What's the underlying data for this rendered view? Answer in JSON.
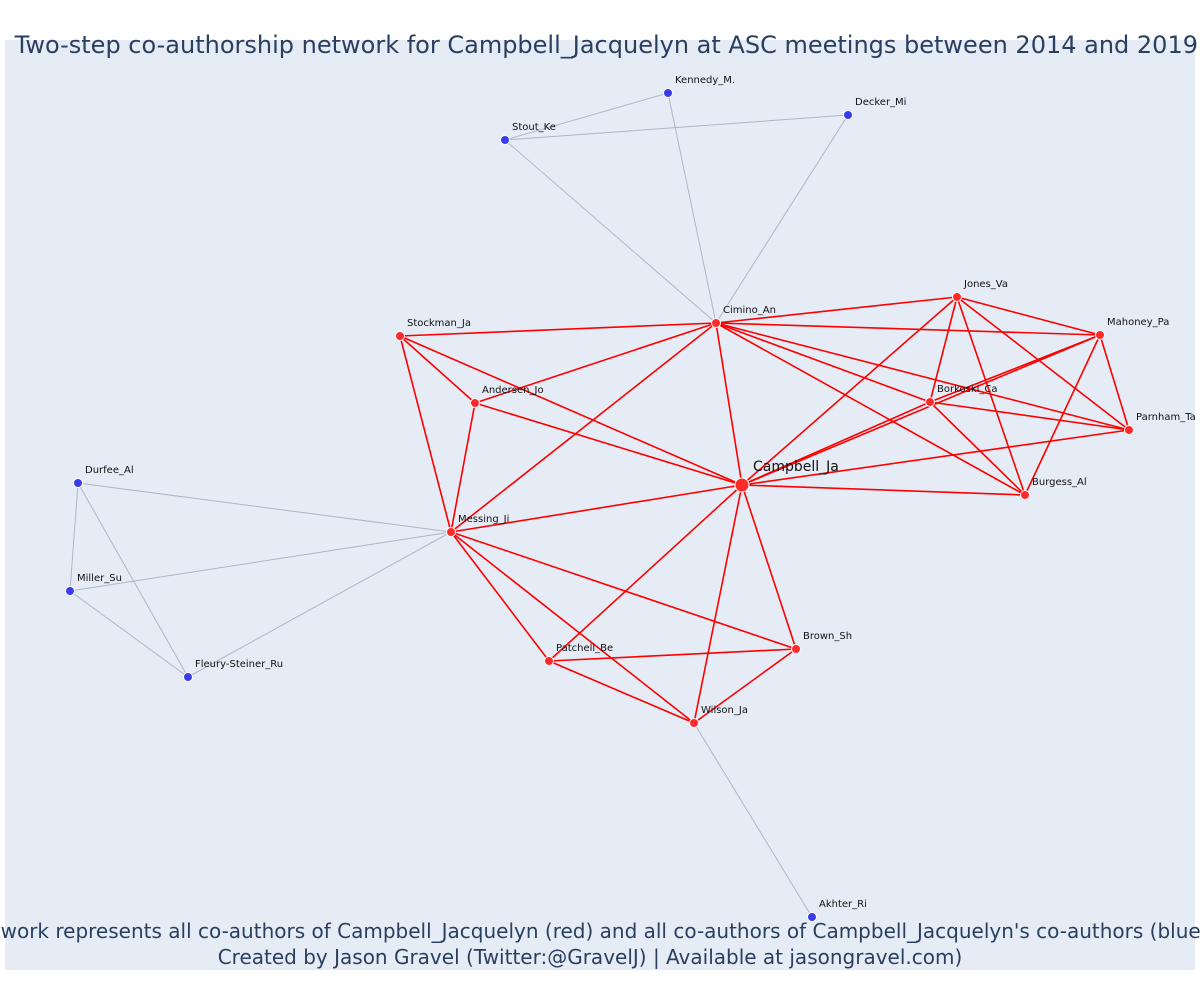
{
  "title": "Two-step co-authorship network for Campbell_Jacquelyn at ASC meetings between 2014 and 2019",
  "caption": {
    "line1": "Network represents all co-authors of Campbell_Jacquelyn (red) and all co-authors of Campbell_Jacquelyn's co-authors (blue)",
    "line2": "Created by Jason Gravel (Twitter:@GravelJ) | Available at jasongravel.com)"
  },
  "colors": {
    "plot_bg": "#e5ecf6",
    "first_step": "#ff2a2a",
    "second_step": "#3b3bee",
    "first_step_edge": "#ff0000",
    "second_step_edge": "#b0b4c8",
    "node_outline": "#ffffff",
    "text": "#2a3f5f"
  },
  "nodes": [
    {
      "id": "Campbell_Ja",
      "label": "Campbell_Ja",
      "group": "ego"
    },
    {
      "id": "Cimino_An",
      "label": "Cimino_An",
      "group": "red"
    },
    {
      "id": "Stockman_Ja",
      "label": "Stockman_Ja",
      "group": "red"
    },
    {
      "id": "Andersen_Jo",
      "label": "Andersen_Jo",
      "group": "red"
    },
    {
      "id": "Messing_Ji",
      "label": "Messing_Ji",
      "group": "red"
    },
    {
      "id": "Patchell_Be",
      "label": "Patchell_Be",
      "group": "red"
    },
    {
      "id": "Wilson_Ja",
      "label": "Wilson_Ja",
      "group": "red"
    },
    {
      "id": "Brown_Sh",
      "label": "Brown_Sh",
      "group": "red"
    },
    {
      "id": "Jones_Va",
      "label": "Jones_Va",
      "group": "red"
    },
    {
      "id": "Mahoney_Pa",
      "label": "Mahoney_Pa",
      "group": "red"
    },
    {
      "id": "Borkoski_Ca",
      "label": "Borkoski_Ca",
      "group": "red"
    },
    {
      "id": "Parnham_Ta",
      "label": "Parnham_Ta",
      "group": "red"
    },
    {
      "id": "Burgess_Al",
      "label": "Burgess_Al",
      "group": "red"
    },
    {
      "id": "Kennedy_M.",
      "label": "Kennedy_M.",
      "group": "blue"
    },
    {
      "id": "Decker_Mi",
      "label": "Decker_Mi",
      "group": "blue"
    },
    {
      "id": "Stout_Ke",
      "label": "Stout_Ke",
      "group": "blue"
    },
    {
      "id": "Durfee_Al",
      "label": "Durfee_Al",
      "group": "blue"
    },
    {
      "id": "Miller_Su",
      "label": "Miller_Su",
      "group": "blue"
    },
    {
      "id": "Fleury-Steiner_Ru",
      "label": "Fleury-Steiner_Ru",
      "group": "blue"
    },
    {
      "id": "Akhter_Ri",
      "label": "Akhter_Ri",
      "group": "blue"
    }
  ],
  "edges": [
    [
      "Campbell_Ja",
      "Cimino_An"
    ],
    [
      "Campbell_Ja",
      "Stockman_Ja"
    ],
    [
      "Campbell_Ja",
      "Andersen_Jo"
    ],
    [
      "Campbell_Ja",
      "Messing_Ji"
    ],
    [
      "Campbell_Ja",
      "Patchell_Be"
    ],
    [
      "Campbell_Ja",
      "Wilson_Ja"
    ],
    [
      "Campbell_Ja",
      "Brown_Sh"
    ],
    [
      "Campbell_Ja",
      "Jones_Va"
    ],
    [
      "Campbell_Ja",
      "Mahoney_Pa"
    ],
    [
      "Campbell_Ja",
      "Borkoski_Ca"
    ],
    [
      "Campbell_Ja",
      "Parnham_Ta"
    ],
    [
      "Campbell_Ja",
      "Burgess_Al"
    ],
    [
      "Cimino_An",
      "Stockman_Ja"
    ],
    [
      "Cimino_An",
      "Andersen_Jo"
    ],
    [
      "Cimino_An",
      "Messing_Ji"
    ],
    [
      "Cimino_An",
      "Jones_Va"
    ],
    [
      "Cimino_An",
      "Mahoney_Pa"
    ],
    [
      "Cimino_An",
      "Borkoski_Ca"
    ],
    [
      "Cimino_An",
      "Parnham_Ta"
    ],
    [
      "Cimino_An",
      "Burgess_Al"
    ],
    [
      "Stockman_Ja",
      "Andersen_Jo"
    ],
    [
      "Stockman_Ja",
      "Messing_Ji"
    ],
    [
      "Andersen_Jo",
      "Messing_Ji"
    ],
    [
      "Messing_Ji",
      "Patchell_Be"
    ],
    [
      "Messing_Ji",
      "Wilson_Ja"
    ],
    [
      "Messing_Ji",
      "Brown_Sh"
    ],
    [
      "Patchell_Be",
      "Wilson_Ja"
    ],
    [
      "Patchell_Be",
      "Brown_Sh"
    ],
    [
      "Wilson_Ja",
      "Brown_Sh"
    ],
    [
      "Jones_Va",
      "Mahoney_Pa"
    ],
    [
      "Jones_Va",
      "Borkoski_Ca"
    ],
    [
      "Jones_Va",
      "Parnham_Ta"
    ],
    [
      "Jones_Va",
      "Burgess_Al"
    ],
    [
      "Mahoney_Pa",
      "Borkoski_Ca"
    ],
    [
      "Mahoney_Pa",
      "Parnham_Ta"
    ],
    [
      "Mahoney_Pa",
      "Burgess_Al"
    ],
    [
      "Borkoski_Ca",
      "Parnham_Ta"
    ],
    [
      "Borkoski_Ca",
      "Burgess_Al"
    ],
    [
      "Cimino_An",
      "Kennedy_M."
    ],
    [
      "Cimino_An",
      "Decker_Mi"
    ],
    [
      "Cimino_An",
      "Stout_Ke"
    ],
    [
      "Kennedy_M.",
      "Stout_Ke"
    ],
    [
      "Decker_Mi",
      "Stout_Ke"
    ],
    [
      "Messing_Ji",
      "Durfee_Al"
    ],
    [
      "Messing_Ji",
      "Miller_Su"
    ],
    [
      "Messing_Ji",
      "Fleury-Steiner_Ru"
    ],
    [
      "Durfee_Al",
      "Miller_Su"
    ],
    [
      "Durfee_Al",
      "Fleury-Steiner_Ru"
    ],
    [
      "Miller_Su",
      "Fleury-Steiner_Ru"
    ],
    [
      "Wilson_Ja",
      "Akhter_Ri"
    ]
  ]
}
